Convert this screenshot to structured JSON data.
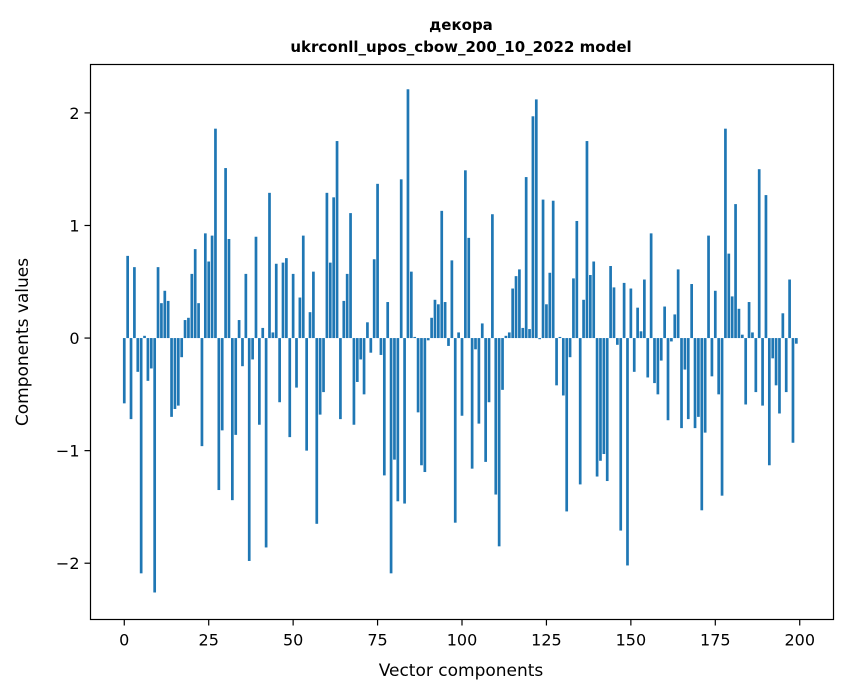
{
  "chart_data": {
    "type": "bar",
    "title": "декора",
    "subtitle": "ukrconll_upos_cbow_200_10_2022 model",
    "xlabel": "Vector components",
    "ylabel": "Components values",
    "xlim": [
      -10,
      210
    ],
    "ylim": [
      -2.5,
      2.43
    ],
    "xticks": [
      0,
      25,
      50,
      75,
      100,
      125,
      150,
      175,
      200
    ],
    "yticks": [
      -2,
      -1,
      0,
      1,
      2
    ],
    "ytick_labels": [
      "−2",
      "−1",
      "0",
      "1",
      "2"
    ],
    "bar_color": "#1f77b4",
    "values": [
      -0.58,
      0.73,
      -0.72,
      0.63,
      -0.3,
      -2.09,
      0.02,
      -0.38,
      -0.27,
      -2.26,
      0.63,
      0.31,
      0.42,
      0.33,
      -0.7,
      -0.63,
      -0.6,
      -0.17,
      0.16,
      0.18,
      0.57,
      0.79,
      0.31,
      -0.96,
      0.93,
      0.68,
      0.91,
      1.86,
      -1.35,
      -0.82,
      1.51,
      0.88,
      -1.44,
      -0.86,
      0.16,
      -0.25,
      0.57,
      -1.98,
      -0.19,
      0.9,
      -0.77,
      0.09,
      -1.86,
      1.29,
      0.05,
      0.66,
      -0.57,
      0.67,
      0.71,
      -0.88,
      0.57,
      -0.44,
      0.36,
      0.91,
      -1.0,
      0.23,
      0.59,
      -1.65,
      -0.68,
      -0.48,
      1.29,
      0.67,
      1.25,
      1.75,
      -0.72,
      0.33,
      0.57,
      1.11,
      -0.77,
      -0.39,
      -0.19,
      -0.5,
      0.14,
      -0.13,
      0.7,
      1.37,
      -0.15,
      -1.22,
      0.32,
      -2.09,
      -1.08,
      -1.45,
      1.41,
      -1.47,
      2.21,
      0.59,
      0.01,
      -0.66,
      -1.13,
      -1.19,
      -0.02,
      0.18,
      0.34,
      0.3,
      1.13,
      0.32,
      -0.07,
      0.69,
      -1.64,
      0.05,
      -0.69,
      1.49,
      0.89,
      -1.16,
      -0.1,
      -0.76,
      0.13,
      -1.1,
      -0.57,
      1.1,
      -1.39,
      -1.85,
      -0.46,
      0.02,
      0.05,
      0.44,
      0.55,
      0.61,
      0.09,
      1.43,
      0.08,
      1.97,
      2.12,
      -0.01,
      1.23,
      0.3,
      0.58,
      1.22,
      -0.42,
      0.01,
      -0.51,
      -1.54,
      -0.17,
      0.53,
      1.04,
      -1.3,
      0.34,
      1.75,
      0.56,
      0.68,
      -1.23,
      -1.09,
      -1.03,
      -1.27,
      0.64,
      0.45,
      -0.06,
      -1.71,
      0.49,
      -2.02,
      0.44,
      -0.3,
      0.27,
      0.06,
      0.52,
      -0.35,
      0.93,
      -0.4,
      -0.5,
      -0.2,
      0.28,
      -0.73,
      -0.03,
      0.21,
      0.61,
      -0.8,
      -0.28,
      -0.72,
      0.48,
      -0.8,
      -0.7,
      -1.53,
      -0.84,
      0.91,
      -0.34,
      0.42,
      -0.5,
      -1.4,
      1.86,
      0.75,
      0.37,
      1.19,
      0.26,
      0.03,
      -0.59,
      0.32,
      0.05,
      -0.48,
      1.5,
      -0.6,
      1.27,
      -1.13,
      -0.18,
      -0.42,
      -0.67,
      0.22,
      -0.48,
      0.52,
      -0.93,
      -0.05
    ]
  }
}
